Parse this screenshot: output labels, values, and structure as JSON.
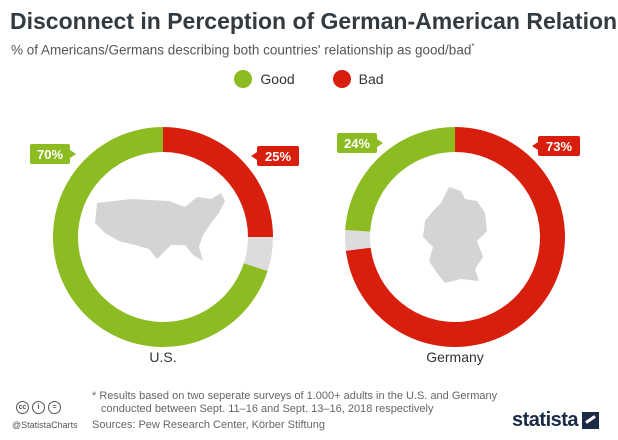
{
  "header": {
    "title": "Disconnect in Perception of German-American Relations",
    "subtitle": "% of Americans/Germans describing both countries' relationship as good/bad",
    "subtitle_mark": "*"
  },
  "legend": [
    {
      "label": "Good",
      "color": "#8cbb22"
    },
    {
      "label": "Bad",
      "color": "#d81f0d"
    }
  ],
  "colors": {
    "good": "#8cbb22",
    "bad": "#d81f0d",
    "other": "#dcdcdc",
    "map": "#d4d4d4"
  },
  "chart_data": [
    {
      "type": "pie",
      "variant": "donut",
      "label": "U.S.",
      "series": [
        {
          "name": "Good",
          "value": 70,
          "display": "70%"
        },
        {
          "name": "Bad",
          "value": 25,
          "display": "25%"
        },
        {
          "name": "",
          "value": 5
        }
      ],
      "center_icon": "usa-map"
    },
    {
      "type": "pie",
      "variant": "donut",
      "label": "Germany",
      "series": [
        {
          "name": "Good",
          "value": 24,
          "display": "24%"
        },
        {
          "name": "Bad",
          "value": 73,
          "display": "73%"
        },
        {
          "name": "",
          "value": 3
        }
      ],
      "center_icon": "germany-map"
    }
  ],
  "footer": {
    "footnote_line1": "* Results based on two seperate surveys of 1.000+ adults in the U.S. and Germany",
    "footnote_line2": "conducted between Sept. 11–16 and Sept. 13–16, 2018 respectively",
    "sources": "Sources: Pew Research Center, Körber Stiftung",
    "handle": "@StatistaCharts",
    "brand": "statista",
    "cc_icons": [
      "cc",
      "by",
      "nd"
    ]
  }
}
